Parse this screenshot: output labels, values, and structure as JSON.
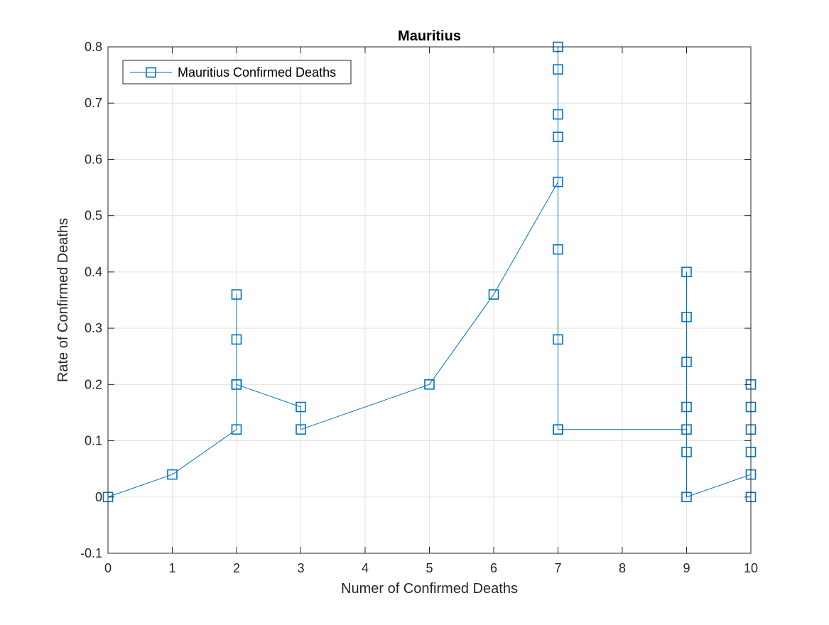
{
  "chart_data": {
    "type": "line",
    "title": "Mauritius",
    "xlabel": "Numer of Confirmed Deaths",
    "ylabel": "Rate of Confirmed Deaths",
    "xlim": [
      0,
      10
    ],
    "ylim": [
      -0.1,
      0.8
    ],
    "xticks": [
      0,
      1,
      2,
      3,
      4,
      5,
      6,
      7,
      8,
      9,
      10
    ],
    "yticks": [
      -0.1,
      0,
      0.1,
      0.2,
      0.3,
      0.4,
      0.5,
      0.6,
      0.7,
      0.8
    ],
    "grid": true,
    "legend_position": "top-left",
    "series": [
      {
        "name": "Mauritius Confirmed Deaths",
        "color": "#0072BD",
        "marker": "square",
        "x": [
          0,
          1,
          2,
          2,
          2,
          2,
          2,
          3,
          3,
          5,
          6,
          7,
          7,
          7,
          7,
          7,
          7,
          7,
          7,
          7,
          9,
          9,
          9,
          9,
          9,
          9,
          9,
          10,
          10,
          10,
          10,
          10,
          10
        ],
        "y": [
          0,
          0.04,
          0.12,
          0.36,
          0.28,
          0.2,
          0.2,
          0.16,
          0.12,
          0.2,
          0.36,
          0.56,
          0.8,
          0.76,
          0.68,
          0.64,
          0.44,
          0.28,
          0.12,
          0.12,
          0.12,
          0.4,
          0.32,
          0.24,
          0.16,
          0.08,
          0,
          0.04,
          0.2,
          0.16,
          0.12,
          0.08,
          0
        ]
      }
    ]
  }
}
